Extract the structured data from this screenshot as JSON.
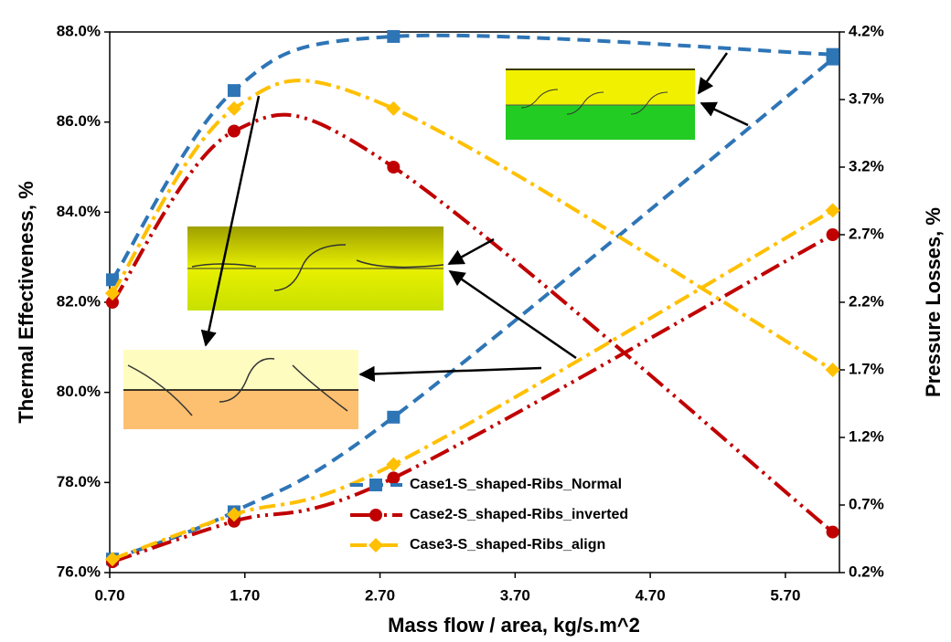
{
  "chart_data": {
    "type": "line",
    "xlabel": "Mass flow / area, kg/s.m^2",
    "ylabel": "Thermal Effectiveness, %",
    "y2label": "Pressure Losses, %",
    "x": [
      0.72,
      1.62,
      2.8,
      6.05
    ],
    "xlim": [
      0.7,
      6.1
    ],
    "xticks": [
      {
        "value": 0.7,
        "label": "0.70"
      },
      {
        "value": 1.7,
        "label": "1.70"
      },
      {
        "value": 2.7,
        "label": "2.70"
      },
      {
        "value": 3.7,
        "label": "3.70"
      },
      {
        "value": 4.7,
        "label": "4.70"
      },
      {
        "value": 5.7,
        "label": "5.70"
      }
    ],
    "ylim": [
      76,
      88
    ],
    "yticks": [
      {
        "value": 76,
        "label": "76.0%"
      },
      {
        "value": 78,
        "label": "78.0%"
      },
      {
        "value": 80,
        "label": "80.0%"
      },
      {
        "value": 82,
        "label": "82.0%"
      },
      {
        "value": 84,
        "label": "84.0%"
      },
      {
        "value": 86,
        "label": "86.0%"
      },
      {
        "value": 88,
        "label": "88.0%"
      }
    ],
    "y2lim": [
      0.2,
      4.2
    ],
    "y2ticks": [
      {
        "value": 0.2,
        "label": "0.2%"
      },
      {
        "value": 0.7,
        "label": "0.7%"
      },
      {
        "value": 1.2,
        "label": "1.2%"
      },
      {
        "value": 1.7,
        "label": "1.7%"
      },
      {
        "value": 2.2,
        "label": "2.2%"
      },
      {
        "value": 2.7,
        "label": "2.7%"
      },
      {
        "value": 3.2,
        "label": "3.2%"
      },
      {
        "value": 3.7,
        "label": "3.7%"
      },
      {
        "value": 4.2,
        "label": "4.2%"
      }
    ],
    "series": [
      {
        "name": "Case1-S_shaped-Ribs_Normal",
        "color": "#2e75b6",
        "marker": "square",
        "dash": "14 8",
        "values": [
          82.5,
          86.7,
          87.9,
          87.5
        ],
        "y2_values": [
          0.3,
          0.65,
          1.35,
          4.0
        ]
      },
      {
        "name": "Case2-S_shaped-Ribs_inverted",
        "color": "#c00000",
        "marker": "circle",
        "dash": "22 6 3 6 3 6",
        "values": [
          82.0,
          85.8,
          85.0,
          76.9
        ],
        "y2_values": [
          0.28,
          0.58,
          0.9,
          2.7
        ]
      },
      {
        "name": "Case3-S_shaped-Ribs_align",
        "color": "#ffc000",
        "marker": "diamond",
        "dash": "18 6 4 6",
        "values": [
          82.2,
          86.3,
          86.3,
          80.5
        ],
        "y2_values": [
          0.3,
          0.63,
          1.0,
          2.88
        ]
      }
    ]
  }
}
